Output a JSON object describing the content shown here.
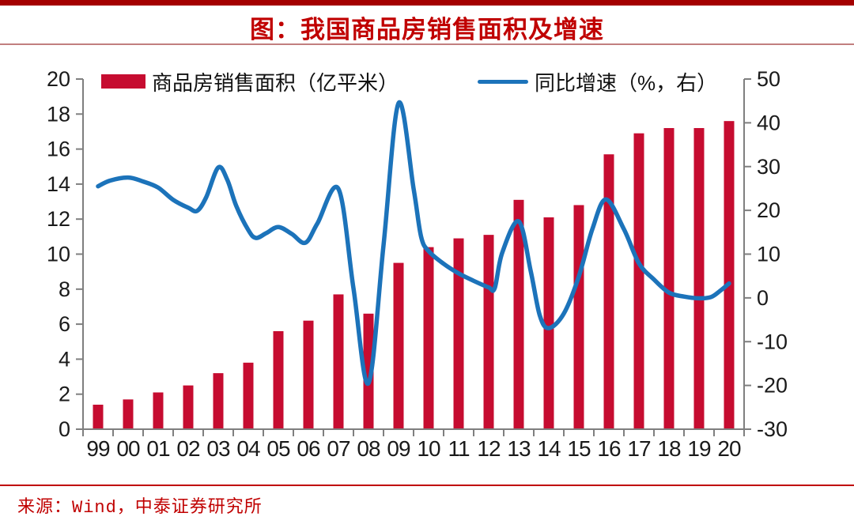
{
  "page": {
    "title": "图：我国商品房销售面积及增速",
    "source": "来源：Wind，中泰证券研究所"
  },
  "colors": {
    "top_bar": "#A40000",
    "title_red": "#C00000",
    "title_divider": "#C17F7F",
    "source_divider": "#C00000",
    "source_red": "#C00000",
    "bar": "#C60C30",
    "line": "#1C73BA",
    "axis": "#7F7F7F",
    "tick_label": "#1A1A1A"
  },
  "chart_data": {
    "type": "bar",
    "subtype": "combo-bar-line-dual-axis",
    "title": "图：我国商品房销售面积及增速",
    "categories": [
      "99",
      "00",
      "01",
      "02",
      "03",
      "04",
      "05",
      "06",
      "07",
      "08",
      "09",
      "10",
      "11",
      "12",
      "13",
      "14",
      "15",
      "16",
      "17",
      "18",
      "19",
      "20"
    ],
    "series": [
      {
        "name": "商品房销售面积（亿平米）",
        "type": "bar",
        "axis": "left",
        "values": [
          1.4,
          1.7,
          2.1,
          2.5,
          3.2,
          3.8,
          5.6,
          6.2,
          7.7,
          6.6,
          9.5,
          10.4,
          10.9,
          11.1,
          13.1,
          12.1,
          12.8,
          15.7,
          16.9,
          17.2,
          17.2,
          17.6
        ]
      },
      {
        "name": "同比增速（%，右）",
        "type": "line",
        "axis": "right",
        "annual_values_at_ticks": [
          25.5,
          27.5,
          25.2,
          20.6,
          29.8,
          15.5,
          16.2,
          12.6,
          24.9,
          -19.5,
          44.5,
          10.7,
          5.6,
          2.4,
          17.5,
          -6.9,
          4.9,
          22.4,
          7.9,
          1.2,
          -0.1,
          3.3
        ],
        "smooth_points": [
          [
            1999.0,
            25.5
          ],
          [
            1999.4,
            26.8
          ],
          [
            2000.0,
            27.5
          ],
          [
            2000.5,
            26.6
          ],
          [
            2001.0,
            25.2
          ],
          [
            2001.5,
            22.4
          ],
          [
            2002.0,
            20.6
          ],
          [
            2002.3,
            19.9
          ],
          [
            2002.6,
            23.0
          ],
          [
            2003.0,
            29.8
          ],
          [
            2003.3,
            27.0
          ],
          [
            2003.6,
            21.0
          ],
          [
            2004.0,
            15.5
          ],
          [
            2004.25,
            13.7
          ],
          [
            2004.6,
            14.8
          ],
          [
            2005.0,
            16.2
          ],
          [
            2005.45,
            14.6
          ],
          [
            2005.9,
            12.6
          ],
          [
            2006.3,
            17.0
          ],
          [
            2007.0,
            24.9
          ],
          [
            2007.5,
            2.2
          ],
          [
            2008.0,
            -19.5
          ],
          [
            2008.5,
            12.0
          ],
          [
            2009.0,
            44.5
          ],
          [
            2009.5,
            25.0
          ],
          [
            2009.75,
            14.0
          ],
          [
            2010.0,
            10.7
          ],
          [
            2010.5,
            7.8
          ],
          [
            2011.0,
            5.6
          ],
          [
            2011.5,
            3.9
          ],
          [
            2012.0,
            2.4
          ],
          [
            2012.2,
            2.2
          ],
          [
            2012.45,
            10.3
          ],
          [
            2013.0,
            17.5
          ],
          [
            2013.4,
            6.1
          ],
          [
            2013.7,
            -4.0
          ],
          [
            2014.0,
            -6.9
          ],
          [
            2014.5,
            -3.6
          ],
          [
            2015.0,
            4.9
          ],
          [
            2015.45,
            15.7
          ],
          [
            2015.9,
            22.5
          ],
          [
            2016.5,
            15.7
          ],
          [
            2017.0,
            7.9
          ],
          [
            2017.5,
            4.2
          ],
          [
            2018.0,
            1.2
          ],
          [
            2018.5,
            0.3
          ],
          [
            2019.0,
            -0.1
          ],
          [
            2019.4,
            0.2
          ],
          [
            2019.7,
            1.6
          ],
          [
            2020.0,
            3.3
          ]
        ]
      }
    ],
    "left_axis": {
      "min": 0,
      "max": 20,
      "step": 2,
      "labels": [
        "0",
        "2",
        "4",
        "6",
        "8",
        "10",
        "12",
        "14",
        "16",
        "18",
        "20"
      ]
    },
    "right_axis": {
      "min": -30,
      "max": 50,
      "step": 10,
      "labels": [
        "-30",
        "-20",
        "-10",
        "0",
        "10",
        "20",
        "30",
        "40",
        "50"
      ]
    },
    "legend_position": "top",
    "grid": false,
    "source": "来源：Wind，中泰证券研究所"
  }
}
